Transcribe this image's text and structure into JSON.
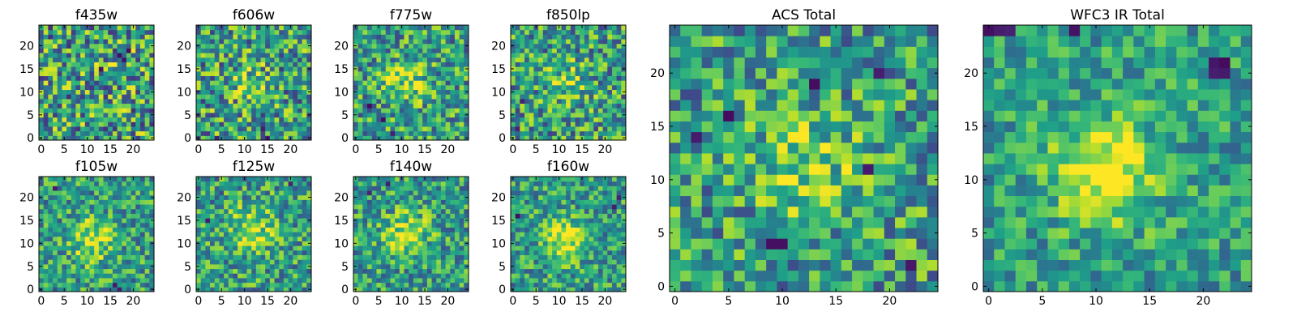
{
  "chart_data": [
    {
      "type": "heatmap",
      "title": "f435w",
      "xticks": [
        "0",
        "5",
        "10",
        "15",
        "20"
      ],
      "yticks": [
        "0",
        "5",
        "10",
        "15",
        "20"
      ],
      "xlim": [
        -0.5,
        24.5
      ],
      "ylim": [
        -0.5,
        24.5
      ],
      "grid": false,
      "colormap": "viridis",
      "blob": {
        "center": [
          16,
          14
        ],
        "strength": 0.1
      },
      "outliers": [
        [
          17,
          18
        ],
        [
          18,
          17
        ],
        [
          19,
          19
        ],
        [
          13,
          15
        ]
      ]
    },
    {
      "type": "heatmap",
      "title": "f606w",
      "xticks": [
        "0",
        "5",
        "10",
        "15",
        "20"
      ],
      "yticks": [
        "0",
        "5",
        "10",
        "15",
        "20"
      ],
      "xlim": [
        -0.5,
        24.5
      ],
      "ylim": [
        -0.5,
        24.5
      ],
      "grid": false,
      "colormap": "viridis",
      "blob": {
        "center": [
          11,
          12
        ],
        "strength": 0.2
      },
      "outliers": [
        [
          4,
          0
        ],
        [
          14,
          2
        ],
        [
          15,
          0
        ]
      ]
    },
    {
      "type": "heatmap",
      "title": "f775w",
      "xticks": [
        "0",
        "5",
        "10",
        "15",
        "20"
      ],
      "yticks": [
        "0",
        "5",
        "10",
        "15",
        "20"
      ],
      "xlim": [
        -0.5,
        24.5
      ],
      "ylim": [
        -0.5,
        24.5
      ],
      "grid": false,
      "colormap": "viridis",
      "blob": {
        "center": [
          11,
          12
        ],
        "strength": 0.35
      },
      "outliers": [
        [
          3,
          7
        ],
        [
          6,
          4
        ],
        [
          8,
          1
        ]
      ]
    },
    {
      "type": "heatmap",
      "title": "f850lp",
      "xticks": [
        "0",
        "5",
        "10",
        "15",
        "20"
      ],
      "yticks": [
        "0",
        "5",
        "10",
        "15",
        "20"
      ],
      "xlim": [
        -0.5,
        24.5
      ],
      "ylim": [
        -0.5,
        24.5
      ],
      "grid": false,
      "colormap": "viridis",
      "blob": {
        "center": [
          12,
          12
        ],
        "strength": 0.3
      },
      "outliers": [
        [
          2,
          8
        ],
        [
          1,
          2
        ]
      ]
    },
    {
      "type": "heatmap",
      "title": "f105w",
      "xticks": [
        "0",
        "5",
        "10",
        "15",
        "20"
      ],
      "yticks": [
        "0",
        "5",
        "10",
        "15",
        "20"
      ],
      "xlim": [
        -0.5,
        24.5
      ],
      "ylim": [
        -0.5,
        24.5
      ],
      "grid": false,
      "colormap": "viridis",
      "blob": {
        "center": [
          11,
          11
        ],
        "strength": 0.5
      },
      "outliers": [
        [
          17,
          0
        ],
        [
          16,
          1
        ],
        [
          3,
          22
        ]
      ]
    },
    {
      "type": "heatmap",
      "title": "f125w",
      "xticks": [
        "0",
        "5",
        "10",
        "15",
        "20"
      ],
      "yticks": [
        "0",
        "5",
        "10",
        "15",
        "20"
      ],
      "xlim": [
        -0.5,
        24.5
      ],
      "ylim": [
        -0.5,
        24.5
      ],
      "grid": false,
      "colormap": "viridis",
      "blob": {
        "center": [
          12,
          13
        ],
        "strength": 0.45
      },
      "outliers": [
        [
          20,
          23
        ],
        [
          2,
          15
        ]
      ]
    },
    {
      "type": "heatmap",
      "title": "f140w",
      "xticks": [
        "0",
        "5",
        "10",
        "15",
        "20"
      ],
      "yticks": [
        "0",
        "5",
        "10",
        "15",
        "20"
      ],
      "xlim": [
        -0.5,
        24.5
      ],
      "ylim": [
        -0.5,
        24.5
      ],
      "grid": false,
      "colormap": "viridis",
      "blob": {
        "center": [
          11,
          12
        ],
        "strength": 0.5
      },
      "outliers": [
        [
          7,
          23
        ],
        [
          3,
          21
        ]
      ]
    },
    {
      "type": "heatmap",
      "title": "f160w",
      "xticks": [
        "0",
        "5",
        "10",
        "15",
        "20"
      ],
      "yticks": [
        "0",
        "5",
        "10",
        "15",
        "20"
      ],
      "xlim": [
        -0.5,
        24.5
      ],
      "ylim": [
        -0.5,
        24.5
      ],
      "grid": false,
      "colormap": "viridis",
      "blob": {
        "center": [
          11,
          11
        ],
        "strength": 0.55
      },
      "outliers": [
        [
          22,
          18
        ],
        [
          23,
          20
        ],
        [
          1,
          16
        ]
      ]
    },
    {
      "type": "heatmap",
      "title": "ACS Total",
      "xticks": [
        "0",
        "5",
        "10",
        "15",
        "20"
      ],
      "yticks": [
        "0",
        "5",
        "10",
        "15",
        "20"
      ],
      "xlim": [
        -0.5,
        24.5
      ],
      "ylim": [
        -0.5,
        24.5
      ],
      "grid": false,
      "colormap": "viridis",
      "blob": {
        "center": [
          12,
          12
        ],
        "strength": 0.4
      },
      "outliers": [
        [
          9,
          4
        ],
        [
          10,
          4
        ],
        [
          18,
          11
        ],
        [
          2,
          14
        ],
        [
          19,
          20
        ],
        [
          13,
          19
        ],
        [
          22,
          2
        ],
        [
          5,
          16
        ]
      ]
    },
    {
      "type": "heatmap",
      "title": "WFC3 IR Total",
      "xticks": [
        "0",
        "5",
        "10",
        "15",
        "20"
      ],
      "yticks": [
        "0",
        "5",
        "10",
        "15",
        "20"
      ],
      "xlim": [
        -0.5,
        24.5
      ],
      "ylim": [
        -0.5,
        24.5
      ],
      "grid": false,
      "colormap": "viridis",
      "blob": {
        "center": [
          11,
          11
        ],
        "strength": 0.7
      },
      "outliers": [
        [
          0,
          24
        ],
        [
          1,
          24
        ],
        [
          2,
          24
        ],
        [
          21,
          20
        ],
        [
          22,
          20
        ],
        [
          21,
          21
        ],
        [
          22,
          21
        ],
        [
          8,
          24
        ]
      ]
    }
  ]
}
